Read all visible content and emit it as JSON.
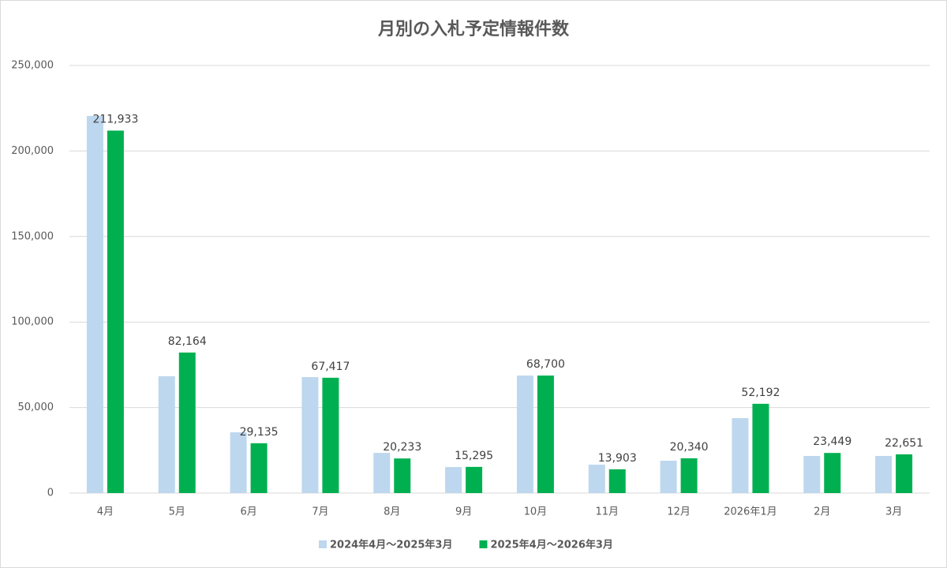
{
  "chart_data": {
    "type": "bar",
    "title": "月別の入札予定情報件数",
    "categories": [
      "4月",
      "5月",
      "6月",
      "7月",
      "8月",
      "9月",
      "10月",
      "11月",
      "12月",
      "2026年1月",
      "2月",
      "3月"
    ],
    "series": [
      {
        "name": "2024年4月～2025年3月",
        "color": "#bdd7ee",
        "values": [
          220500,
          68300,
          35500,
          67800,
          23500,
          15200,
          68700,
          16600,
          18900,
          43800,
          21700,
          21700
        ]
      },
      {
        "name": "2025年4月～2026年3月",
        "color": "#00b050",
        "values": [
          211933,
          82164,
          29135,
          67417,
          20233,
          15295,
          68700,
          13903,
          20340,
          52192,
          23449,
          22651
        ],
        "value_labels": [
          "211,933",
          "82,164",
          "29,135",
          "67,417",
          "20,233",
          "15,295",
          "68,700",
          "13,903",
          "20,340",
          "52,192",
          "23,449",
          "22,651"
        ]
      }
    ],
    "ylim": [
      0,
      250000
    ],
    "yticks": [
      0,
      {
        "value": 50000,
        "label": "50,000"
      },
      {
        "value": 100000,
        "label": "100,000"
      },
      {
        "value": 150000,
        "label": "150,000"
      },
      {
        "value": 200000,
        "label": "200,000"
      },
      {
        "value": 250000,
        "label": "250,000"
      }
    ],
    "grid": true,
    "legend": "bottom"
  }
}
